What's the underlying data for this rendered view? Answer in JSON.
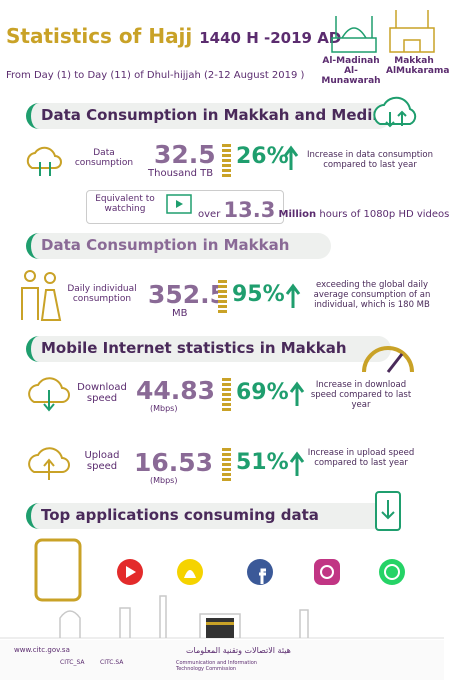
{
  "header": {
    "title": "Statistics of Hajj",
    "date": "1440 H -2019 AD",
    "subtitle": "From Day (1) to Day (11) of Dhul-hijjah (2-12 August 2019 )",
    "cities": [
      "Al-Madinah Al-Munawarah",
      "Makkah AlMukarama"
    ]
  },
  "sections": [
    {
      "title": "Data Consumption in Makkah and Medina",
      "rows": [
        {
          "label": "Data consumption",
          "value": "32.5",
          "unit": "Thousand TB",
          "percent": "26%",
          "description": "Increase in data consumption compared to last year"
        }
      ],
      "equivalent": {
        "label": "Equivalent to watching",
        "prefix": "over",
        "value": "13.3",
        "unit": "Million",
        "suffix": "hours of 1080p HD videos"
      }
    },
    {
      "title": "Data Consumption in Makkah",
      "rows": [
        {
          "label": "Daily individual consumption",
          "value": "352.5",
          "unit": "MB",
          "percent": "95%",
          "description": "exceeding the global daily average consumption of an individual, which is 180 MB"
        }
      ]
    },
    {
      "title": "Mobile Internet statistics in Makkah",
      "rows": [
        {
          "label": "Download speed",
          "value": "44.83",
          "unit": "(Mbps)",
          "percent": "69%",
          "description": "Increase in download speed compared to last year"
        },
        {
          "label": "Upload speed",
          "value": "16.53",
          "unit": "(Mbps)",
          "percent": "51%",
          "description": "Increase in upload speed compared to last year"
        }
      ]
    },
    {
      "title": "Top applications consuming data"
    }
  ],
  "footer": {
    "website": "www.citc.gov.sa",
    "social": [
      "CITC_SA",
      "CITC.SA"
    ],
    "organization_ar": "هيئة الاتصالات وتقنية المعلومات",
    "organization_en": "Communication and Information Technology Commission"
  }
}
